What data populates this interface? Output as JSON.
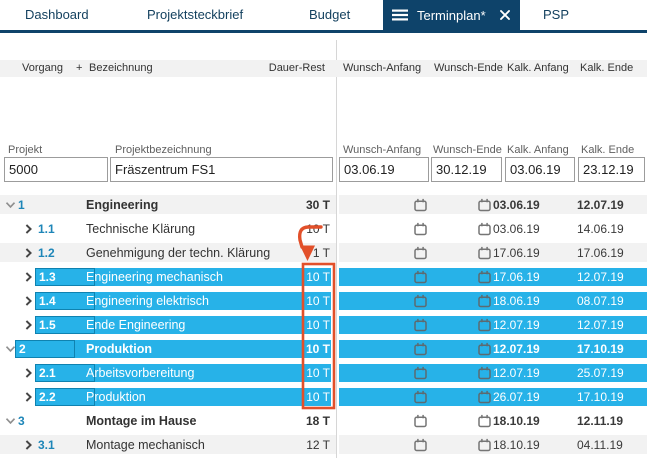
{
  "tabs": [
    {
      "label": "Dashboard",
      "active": false
    },
    {
      "label": "Projektsteckbrief",
      "active": false
    },
    {
      "label": "Budget",
      "active": false
    },
    {
      "label": "Terminplan*",
      "active": true
    },
    {
      "label": "PSP",
      "active": false
    }
  ],
  "grid_header": {
    "vorgang": "Vorgang",
    "plus": "+",
    "bezeichnung": "Bezeichnung",
    "dauer_rest": "Dauer-Rest",
    "wunsch_anfang": "Wunsch-Anfang",
    "wunsch_ende": "Wunsch-Ende",
    "kalk_anfang": "Kalk. Anfang",
    "kalk_ende": "Kalk. Ende"
  },
  "project_form": {
    "labels": {
      "projekt": "Projekt",
      "projektbezeichnung": "Projektbezeichnung",
      "wunsch_anfang": "Wunsch-Anfang",
      "wunsch_ende": "Wunsch-Ende",
      "kalk_anfang": "Kalk. Anfang",
      "kalk_ende": "Kalk. Ende"
    },
    "projekt": "5000",
    "projektbezeichnung": "Fräszentrum FS1",
    "wunsch_anfang": "03.06.19",
    "wunsch_ende": "30.12.19",
    "kalk_anfang": "03.06.19",
    "kalk_ende": "23.12.19"
  },
  "rows": [
    {
      "vorgang": "1",
      "level": 0,
      "state": "expanded",
      "bezeichnung": "Engineering",
      "dauer_rest": "30 T",
      "wunsch_anfang": "",
      "wunsch_ende": "",
      "kalk_anfang": "03.06.19",
      "kalk_ende": "12.07.19",
      "bold": true,
      "selected": false,
      "shaded": true
    },
    {
      "vorgang": "1.1",
      "level": 1,
      "state": "collapsed",
      "bezeichnung": "Technische Klärung",
      "dauer_rest": "10 T",
      "wunsch_anfang": "",
      "wunsch_ende": "",
      "kalk_anfang": "03.06.19",
      "kalk_ende": "14.06.19",
      "bold": false,
      "selected": false,
      "shaded": false
    },
    {
      "vorgang": "1.2",
      "level": 1,
      "state": "collapsed",
      "bezeichnung": "Genehmigung der techn. Klärung",
      "dauer_rest": "1 T",
      "wunsch_anfang": "",
      "wunsch_ende": "",
      "kalk_anfang": "17.06.19",
      "kalk_ende": "17.06.19",
      "bold": false,
      "selected": false,
      "shaded": true
    },
    {
      "vorgang": "1.3",
      "level": 1,
      "state": "collapsed",
      "bezeichnung": "Engineering mechanisch",
      "dauer_rest": "10 T",
      "wunsch_anfang": "",
      "wunsch_ende": "",
      "kalk_anfang": "17.06.19",
      "kalk_ende": "12.07.19",
      "bold": false,
      "selected": true,
      "shaded": false
    },
    {
      "vorgang": "1.4",
      "level": 1,
      "state": "collapsed",
      "bezeichnung": "Engineering elektrisch",
      "dauer_rest": "10 T",
      "wunsch_anfang": "",
      "wunsch_ende": "",
      "kalk_anfang": "18.06.19",
      "kalk_ende": "08.07.19",
      "bold": false,
      "selected": true,
      "shaded": true
    },
    {
      "vorgang": "1.5",
      "level": 1,
      "state": "collapsed",
      "bezeichnung": "Ende Engineering",
      "dauer_rest": "10 T",
      "wunsch_anfang": "",
      "wunsch_ende": "",
      "kalk_anfang": "12.07.19",
      "kalk_ende": "12.07.19",
      "bold": false,
      "selected": true,
      "shaded": false
    },
    {
      "vorgang": "2",
      "level": 0,
      "state": "expanded",
      "bezeichnung": "Produktion",
      "dauer_rest": "10 T",
      "wunsch_anfang": "",
      "wunsch_ende": "",
      "kalk_anfang": "12.07.19",
      "kalk_ende": "17.10.19",
      "bold": true,
      "selected": true,
      "shaded": true
    },
    {
      "vorgang": "2.1",
      "level": 1,
      "state": "collapsed",
      "bezeichnung": "Arbeitsvorbereitung",
      "dauer_rest": "10 T",
      "wunsch_anfang": "",
      "wunsch_ende": "",
      "kalk_anfang": "12.07.19",
      "kalk_ende": "25.07.19",
      "bold": false,
      "selected": true,
      "shaded": false
    },
    {
      "vorgang": "2.2",
      "level": 1,
      "state": "collapsed",
      "bezeichnung": "Produktion",
      "dauer_rest": "10 T",
      "wunsch_anfang": "",
      "wunsch_ende": "",
      "kalk_anfang": "26.07.19",
      "kalk_ende": "17.10.19",
      "bold": false,
      "selected": true,
      "shaded": true
    },
    {
      "vorgang": "3",
      "level": 0,
      "state": "expanded",
      "bezeichnung": "Montage im Hause",
      "dauer_rest": "18 T",
      "wunsch_anfang": "",
      "wunsch_ende": "",
      "kalk_anfang": "18.10.19",
      "kalk_ende": "12.11.19",
      "bold": true,
      "selected": false,
      "shaded": false
    },
    {
      "vorgang": "3.1",
      "level": 1,
      "state": "collapsed",
      "bezeichnung": "Montage mechanisch",
      "dauer_rest": "12 T",
      "wunsch_anfang": "",
      "wunsch_ende": "",
      "kalk_anfang": "18.10.19",
      "kalk_ende": "04.11.19",
      "bold": false,
      "selected": false,
      "shaded": true
    }
  ],
  "annotation": {
    "shape": "arrow-and-rectangle",
    "color": "#e2502a",
    "target": "Dauer-Rest values of rows 1.3 to 2.2"
  },
  "colors": {
    "navy": "#0e436a",
    "selection_cyan": "#27b2e8",
    "annotation_red": "#e2502a",
    "row_alt_gray": "#f2f2f2",
    "vorgang_blue": "#1e86b8"
  }
}
